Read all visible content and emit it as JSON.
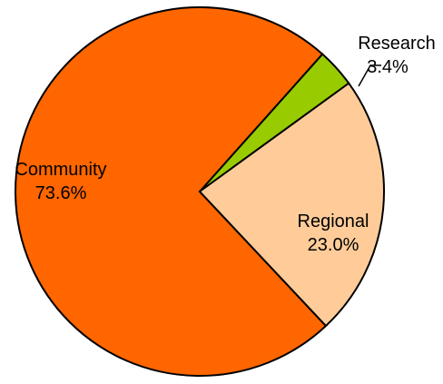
{
  "chart_data": {
    "type": "pie",
    "title": "",
    "legend": "none",
    "series": [
      {
        "values": [
          73.6,
          23.0,
          3.4
        ]
      }
    ],
    "categories": [
      "Community",
      "Regional",
      "Research"
    ],
    "labels": {
      "values": [
        "73.6%",
        "23.0%",
        "3.4%"
      ]
    },
    "colors": [
      "#ff6600",
      "#ffcc99",
      "#99cc00"
    ]
  }
}
